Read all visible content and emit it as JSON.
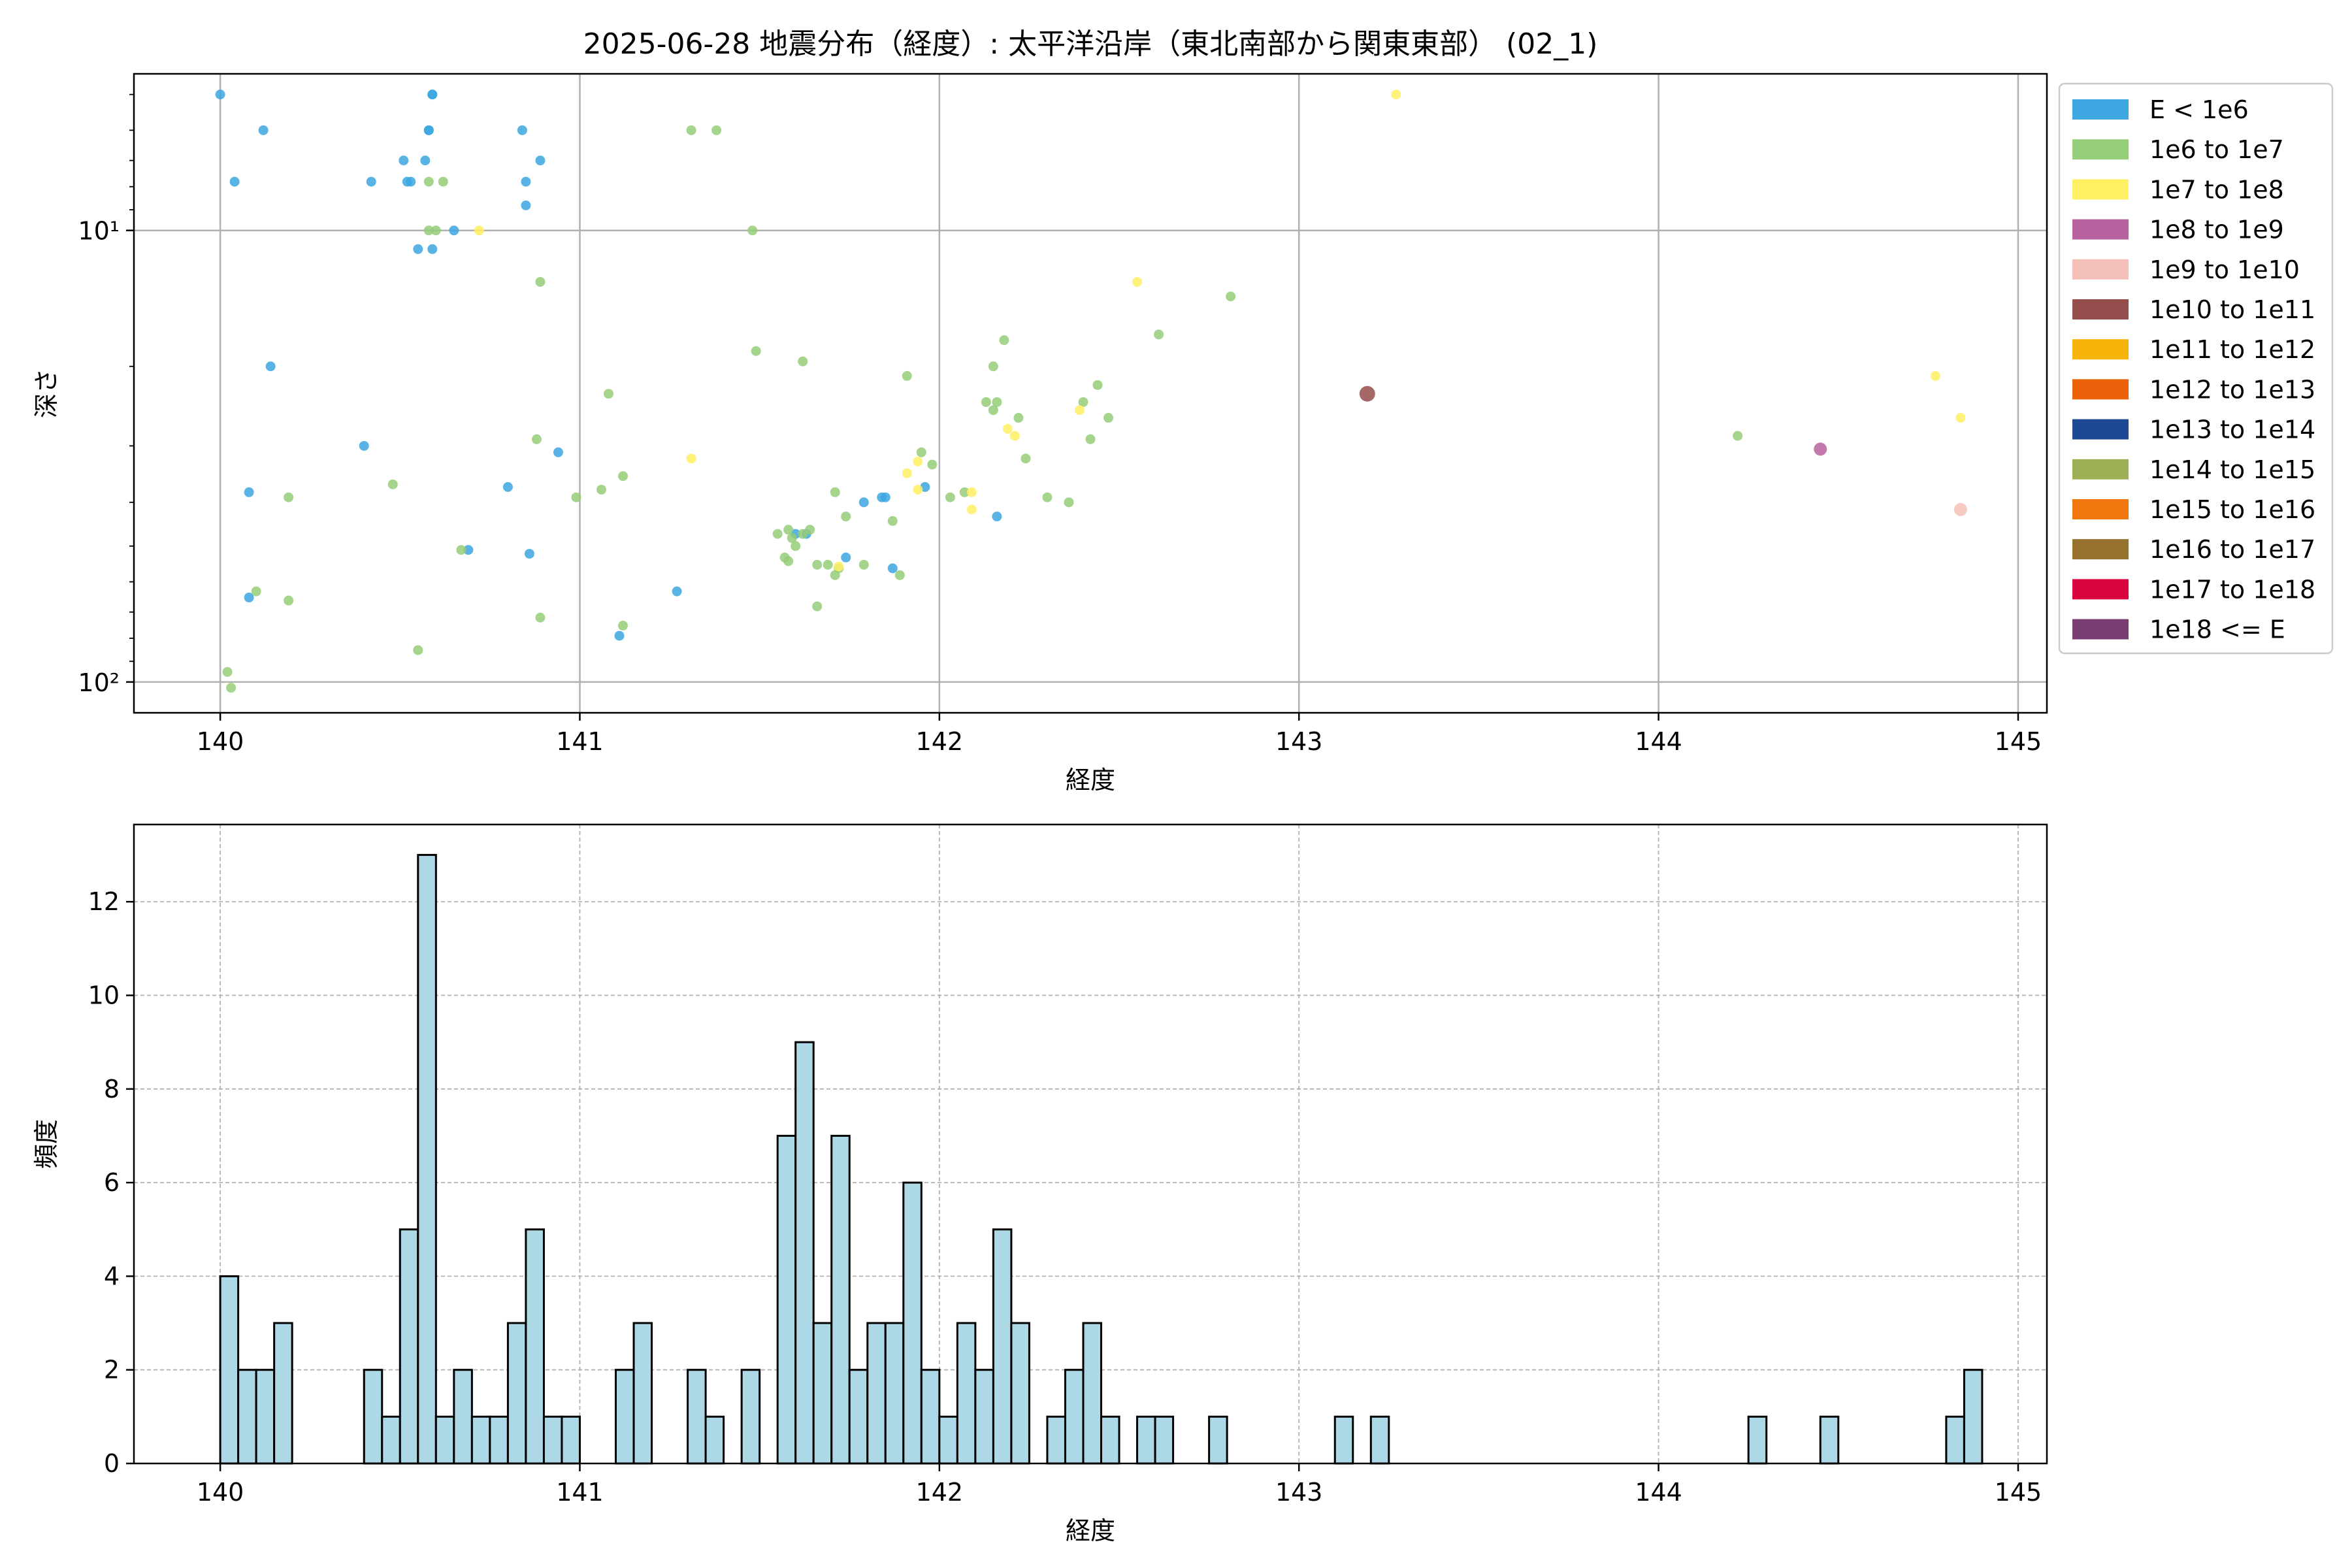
{
  "chart_data": [
    {
      "type": "scatter",
      "title": "2025-06-28 地震分布（経度）: 太平洋沿岸（東北南部から関東東部） (02_1)",
      "xlabel": "経度",
      "ylabel": "深さ",
      "xlim": [
        139.76,
        145.08
      ],
      "ylim": [
        4.5,
        117
      ],
      "yscale": "log",
      "y_inverted": true,
      "xticks": [
        "140",
        "141",
        "142",
        "143",
        "144",
        "145"
      ],
      "yticks": [
        "10¹",
        "10²"
      ],
      "grid": true,
      "legend_position": "outside-right",
      "legend": [
        {
          "label": "E < 1e6",
          "color": "#3ca7e0"
        },
        {
          "label": "1e6 to 1e7",
          "color": "#95cd78"
        },
        {
          "label": "1e7 to 1e8",
          "color": "#fff064"
        },
        {
          "label": "1e8 to 1e9",
          "color": "#b8619f"
        },
        {
          "label": "1e9 to 1e10",
          "color": "#f4bfb9"
        },
        {
          "label": "1e10 to 1e11",
          "color": "#954e4b"
        },
        {
          "label": "1e11 to 1e12",
          "color": "#f6b40a"
        },
        {
          "label": "1e12 to 1e13",
          "color": "#ea6109"
        },
        {
          "label": "1e13 to 1e14",
          "color": "#1c4894"
        },
        {
          "label": "1e14 to 1e15",
          "color": "#9caf55"
        },
        {
          "label": "1e15 to 1e16",
          "color": "#f0770e"
        },
        {
          "label": "1e16 to 1e17",
          "color": "#96702d"
        },
        {
          "label": "1e17 to 1e18",
          "color": "#d9043d"
        },
        {
          "label": "1e18 <= E",
          "color": "#7a3d73"
        }
      ],
      "series": [
        {
          "energy_class": "E < 1e6",
          "points": [
            [
              140.0,
              5.0
            ],
            [
              140.12,
              6.0
            ],
            [
              140.04,
              7.8
            ],
            [
              140.42,
              7.8
            ],
            [
              140.52,
              7.8
            ],
            [
              140.53,
              7.8
            ],
            [
              140.51,
              7.0
            ],
            [
              140.57,
              7.0
            ],
            [
              140.58,
              6.0
            ],
            [
              140.58,
              6.0
            ],
            [
              140.59,
              5.0
            ],
            [
              140.59,
              5.0
            ],
            [
              140.55,
              11.0
            ],
            [
              140.59,
              11.0
            ],
            [
              140.65,
              10.0
            ],
            [
              140.84,
              6.0
            ],
            [
              140.85,
              7.8
            ],
            [
              140.85,
              8.8
            ],
            [
              140.89,
              7.0
            ],
            [
              140.14,
              20.0
            ],
            [
              140.4,
              30.0
            ],
            [
              140.94,
              31.0
            ],
            [
              140.08,
              38.0
            ],
            [
              140.8,
              37.0
            ],
            [
              140.08,
              65.0
            ],
            [
              140.69,
              51.0
            ],
            [
              140.86,
              52.0
            ],
            [
              141.11,
              79.0
            ],
            [
              141.27,
              63.0
            ],
            [
              141.6,
              47.0
            ],
            [
              141.63,
              47.0
            ],
            [
              141.74,
              53.0
            ],
            [
              141.79,
              40.0
            ],
            [
              141.84,
              39.0
            ],
            [
              141.85,
              39.0
            ],
            [
              141.96,
              37.0
            ],
            [
              142.16,
              43.0
            ],
            [
              141.87,
              56.0
            ]
          ]
        },
        {
          "energy_class": "1e6 to 1e7",
          "points": [
            [
              140.58,
              10.0
            ],
            [
              140.6,
              10.0
            ],
            [
              140.58,
              7.8
            ],
            [
              140.62,
              7.8
            ],
            [
              141.31,
              6.0
            ],
            [
              141.38,
              6.0
            ],
            [
              141.48,
              10.0
            ],
            [
              140.89,
              13.0
            ],
            [
              141.49,
              18.5
            ],
            [
              141.62,
              19.5
            ],
            [
              141.91,
              21.0
            ],
            [
              142.15,
              20.0
            ],
            [
              142.18,
              17.5
            ],
            [
              142.61,
              17.0
            ],
            [
              142.81,
              14.0
            ],
            [
              141.08,
              23.0
            ],
            [
              142.13,
              24.0
            ],
            [
              142.16,
              24.0
            ],
            [
              142.15,
              25.0
            ],
            [
              142.22,
              26.0
            ],
            [
              142.4,
              24.0
            ],
            [
              142.44,
              22.0
            ],
            [
              142.47,
              26.0
            ],
            [
              142.42,
              29.0
            ],
            [
              142.24,
              32.0
            ],
            [
              141.95,
              31.0
            ],
            [
              141.98,
              33.0
            ],
            [
              144.22,
              28.5
            ],
            [
              140.88,
              29.0
            ],
            [
              140.19,
              39.0
            ],
            [
              140.48,
              36.5
            ],
            [
              140.99,
              39.0
            ],
            [
              141.06,
              37.5
            ],
            [
              141.12,
              35.0
            ],
            [
              141.71,
              38.0
            ],
            [
              141.74,
              43.0
            ],
            [
              141.87,
              44.0
            ],
            [
              142.03,
              39.0
            ],
            [
              142.07,
              38.0
            ],
            [
              142.3,
              39.0
            ],
            [
              142.36,
              40.0
            ],
            [
              141.55,
              47.0
            ],
            [
              141.58,
              46.0
            ],
            [
              141.59,
              48.0
            ],
            [
              141.6,
              50.0
            ],
            [
              141.62,
              47.0
            ],
            [
              141.64,
              46.0
            ],
            [
              141.57,
              53.0
            ],
            [
              141.58,
              54.0
            ],
            [
              141.66,
              55.0
            ],
            [
              141.69,
              55.0
            ],
            [
              141.71,
              58.0
            ],
            [
              141.72,
              56.0
            ],
            [
              141.79,
              55.0
            ],
            [
              141.89,
              58.0
            ],
            [
              141.66,
              68.0
            ],
            [
              140.67,
              51.0
            ],
            [
              140.1,
              63.0
            ],
            [
              140.19,
              66.0
            ],
            [
              140.89,
              72.0
            ],
            [
              141.12,
              75.0
            ],
            [
              140.55,
              85.0
            ],
            [
              140.02,
              95.0
            ],
            [
              140.03,
              103.0
            ]
          ]
        },
        {
          "energy_class": "1e7 to 1e8",
          "points": [
            [
              143.27,
              5.0
            ],
            [
              140.72,
              10.0
            ],
            [
              142.55,
              13.0
            ],
            [
              144.77,
              21.0
            ],
            [
              144.84,
              26.0
            ],
            [
              142.39,
              25.0
            ],
            [
              142.19,
              27.5
            ],
            [
              142.21,
              28.5
            ],
            [
              141.31,
              32.0
            ],
            [
              141.94,
              32.5
            ],
            [
              141.91,
              34.5
            ],
            [
              141.94,
              37.5
            ],
            [
              142.09,
              38.0
            ],
            [
              142.09,
              41.5
            ],
            [
              141.72,
              55.5
            ]
          ]
        },
        {
          "energy_class": "1e8 to 1e9",
          "points": [
            [
              144.45,
              30.5
            ]
          ]
        },
        {
          "energy_class": "1e9 to 1e10",
          "points": [
            [
              144.84,
              41.5
            ]
          ]
        },
        {
          "energy_class": "1e10 to 1e11",
          "points": [
            [
              143.19,
              23.0
            ]
          ]
        }
      ]
    },
    {
      "type": "bar",
      "xlabel": "経度",
      "ylabel": "頻度",
      "xlim": [
        139.76,
        145.08
      ],
      "ylim": [
        0,
        13.65
      ],
      "xticks": [
        "140",
        "141",
        "142",
        "143",
        "144",
        "145"
      ],
      "yticks": [
        "0",
        "2",
        "4",
        "6",
        "8",
        "10",
        "12"
      ],
      "grid": true,
      "bar_color": "#add8e6",
      "bin_start": 140.0,
      "bin_width": 0.05,
      "values": [
        4,
        2,
        2,
        3,
        0,
        0,
        0,
        0,
        2,
        1,
        5,
        13,
        1,
        2,
        1,
        1,
        3,
        5,
        1,
        1,
        0,
        0,
        2,
        3,
        0,
        0,
        2,
        1,
        0,
        2,
        0,
        7,
        9,
        3,
        7,
        2,
        3,
        3,
        6,
        2,
        1,
        3,
        2,
        5,
        3,
        0,
        1,
        2,
        3,
        1,
        0,
        1,
        1,
        0,
        0,
        1,
        0,
        0,
        0,
        0,
        0,
        0,
        1,
        0,
        1,
        0,
        0,
        0,
        0,
        0,
        0,
        0,
        0,
        0,
        0,
        0,
        0,
        0,
        0,
        0,
        0,
        0,
        0,
        0,
        0,
        1,
        0,
        0,
        0,
        1,
        0,
        0,
        0,
        0,
        0,
        0,
        1,
        2
      ]
    }
  ]
}
